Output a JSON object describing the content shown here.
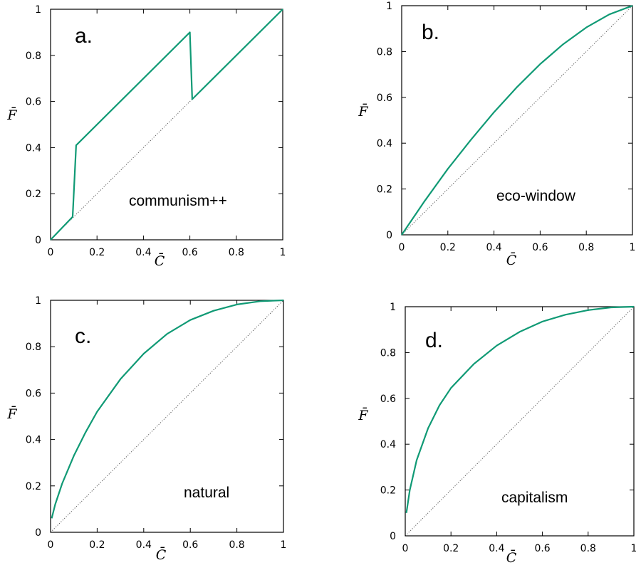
{
  "chart_data": [
    {
      "type": "line",
      "panel_label": "a.",
      "annotation": "communism++",
      "xlabel": "C̄",
      "ylabel": "F̄",
      "xlim": [
        0,
        1
      ],
      "ylim": [
        0,
        1
      ],
      "xticks": [
        "0",
        "0.2",
        "0.4",
        "0.6",
        "0.8",
        "1"
      ],
      "yticks": [
        "0",
        "0.2",
        "0.4",
        "0.6",
        "0.8",
        "1"
      ],
      "curve_color": "#109a75",
      "diagonal": "dotted",
      "series": [
        {
          "x": [
            0,
            0.095,
            0.11,
            0.6,
            0.61,
            1
          ],
          "y": [
            0,
            0.1,
            0.41,
            0.9,
            0.61,
            1
          ]
        }
      ]
    },
    {
      "type": "line",
      "panel_label": "b.",
      "annotation": "eco-window",
      "xlabel": "C̄",
      "ylabel": "F̄",
      "xlim": [
        0,
        1
      ],
      "ylim": [
        0,
        1
      ],
      "xticks": [
        "0",
        "0.2",
        "0.4",
        "0.6",
        "0.8",
        "1"
      ],
      "yticks": [
        "0",
        "0.2",
        "0.4",
        "0.6",
        "0.8",
        "1"
      ],
      "curve_color": "#109a75",
      "diagonal": "dotted",
      "series": [
        {
          "x": [
            0,
            0.1,
            0.2,
            0.3,
            0.4,
            0.5,
            0.6,
            0.7,
            0.8,
            0.9,
            1.0
          ],
          "y": [
            0,
            0.148,
            0.288,
            0.415,
            0.535,
            0.645,
            0.745,
            0.832,
            0.905,
            0.962,
            1.0
          ]
        }
      ]
    },
    {
      "type": "line",
      "panel_label": "c.",
      "annotation": "natural",
      "xlabel": "C̄",
      "ylabel": "F̄",
      "xlim": [
        0,
        1
      ],
      "ylim": [
        0,
        1
      ],
      "xticks": [
        "0",
        "0.2",
        "0.4",
        "0.6",
        "0.8",
        "1"
      ],
      "yticks": [
        "0",
        "0.2",
        "0.4",
        "0.6",
        "0.8",
        "1"
      ],
      "curve_color": "#109a75",
      "diagonal": "dotted",
      "series": [
        {
          "x": [
            0.005,
            0.02,
            0.05,
            0.1,
            0.15,
            0.2,
            0.3,
            0.4,
            0.5,
            0.6,
            0.7,
            0.8,
            0.9,
            1.0
          ],
          "y": [
            0.06,
            0.12,
            0.21,
            0.33,
            0.43,
            0.52,
            0.66,
            0.77,
            0.855,
            0.915,
            0.955,
            0.982,
            0.996,
            1.0
          ]
        }
      ]
    },
    {
      "type": "line",
      "panel_label": "d.",
      "annotation": "capitalism",
      "xlabel": "C̄",
      "ylabel": "F̄",
      "xlim": [
        0,
        1
      ],
      "ylim": [
        0,
        1
      ],
      "xticks": [
        "0",
        "0.2",
        "0.4",
        "0.6",
        "0.8",
        "1"
      ],
      "yticks": [
        "0",
        "0.2",
        "0.4",
        "0.6",
        "0.8",
        "1"
      ],
      "curve_color": "#109a75",
      "diagonal": "dotted",
      "series": [
        {
          "x": [
            0.005,
            0.02,
            0.05,
            0.1,
            0.15,
            0.2,
            0.3,
            0.4,
            0.5,
            0.6,
            0.7,
            0.8,
            0.9,
            1.0
          ],
          "y": [
            0.1,
            0.2,
            0.33,
            0.47,
            0.57,
            0.645,
            0.75,
            0.83,
            0.89,
            0.935,
            0.965,
            0.985,
            0.997,
            1.0
          ]
        }
      ]
    }
  ]
}
